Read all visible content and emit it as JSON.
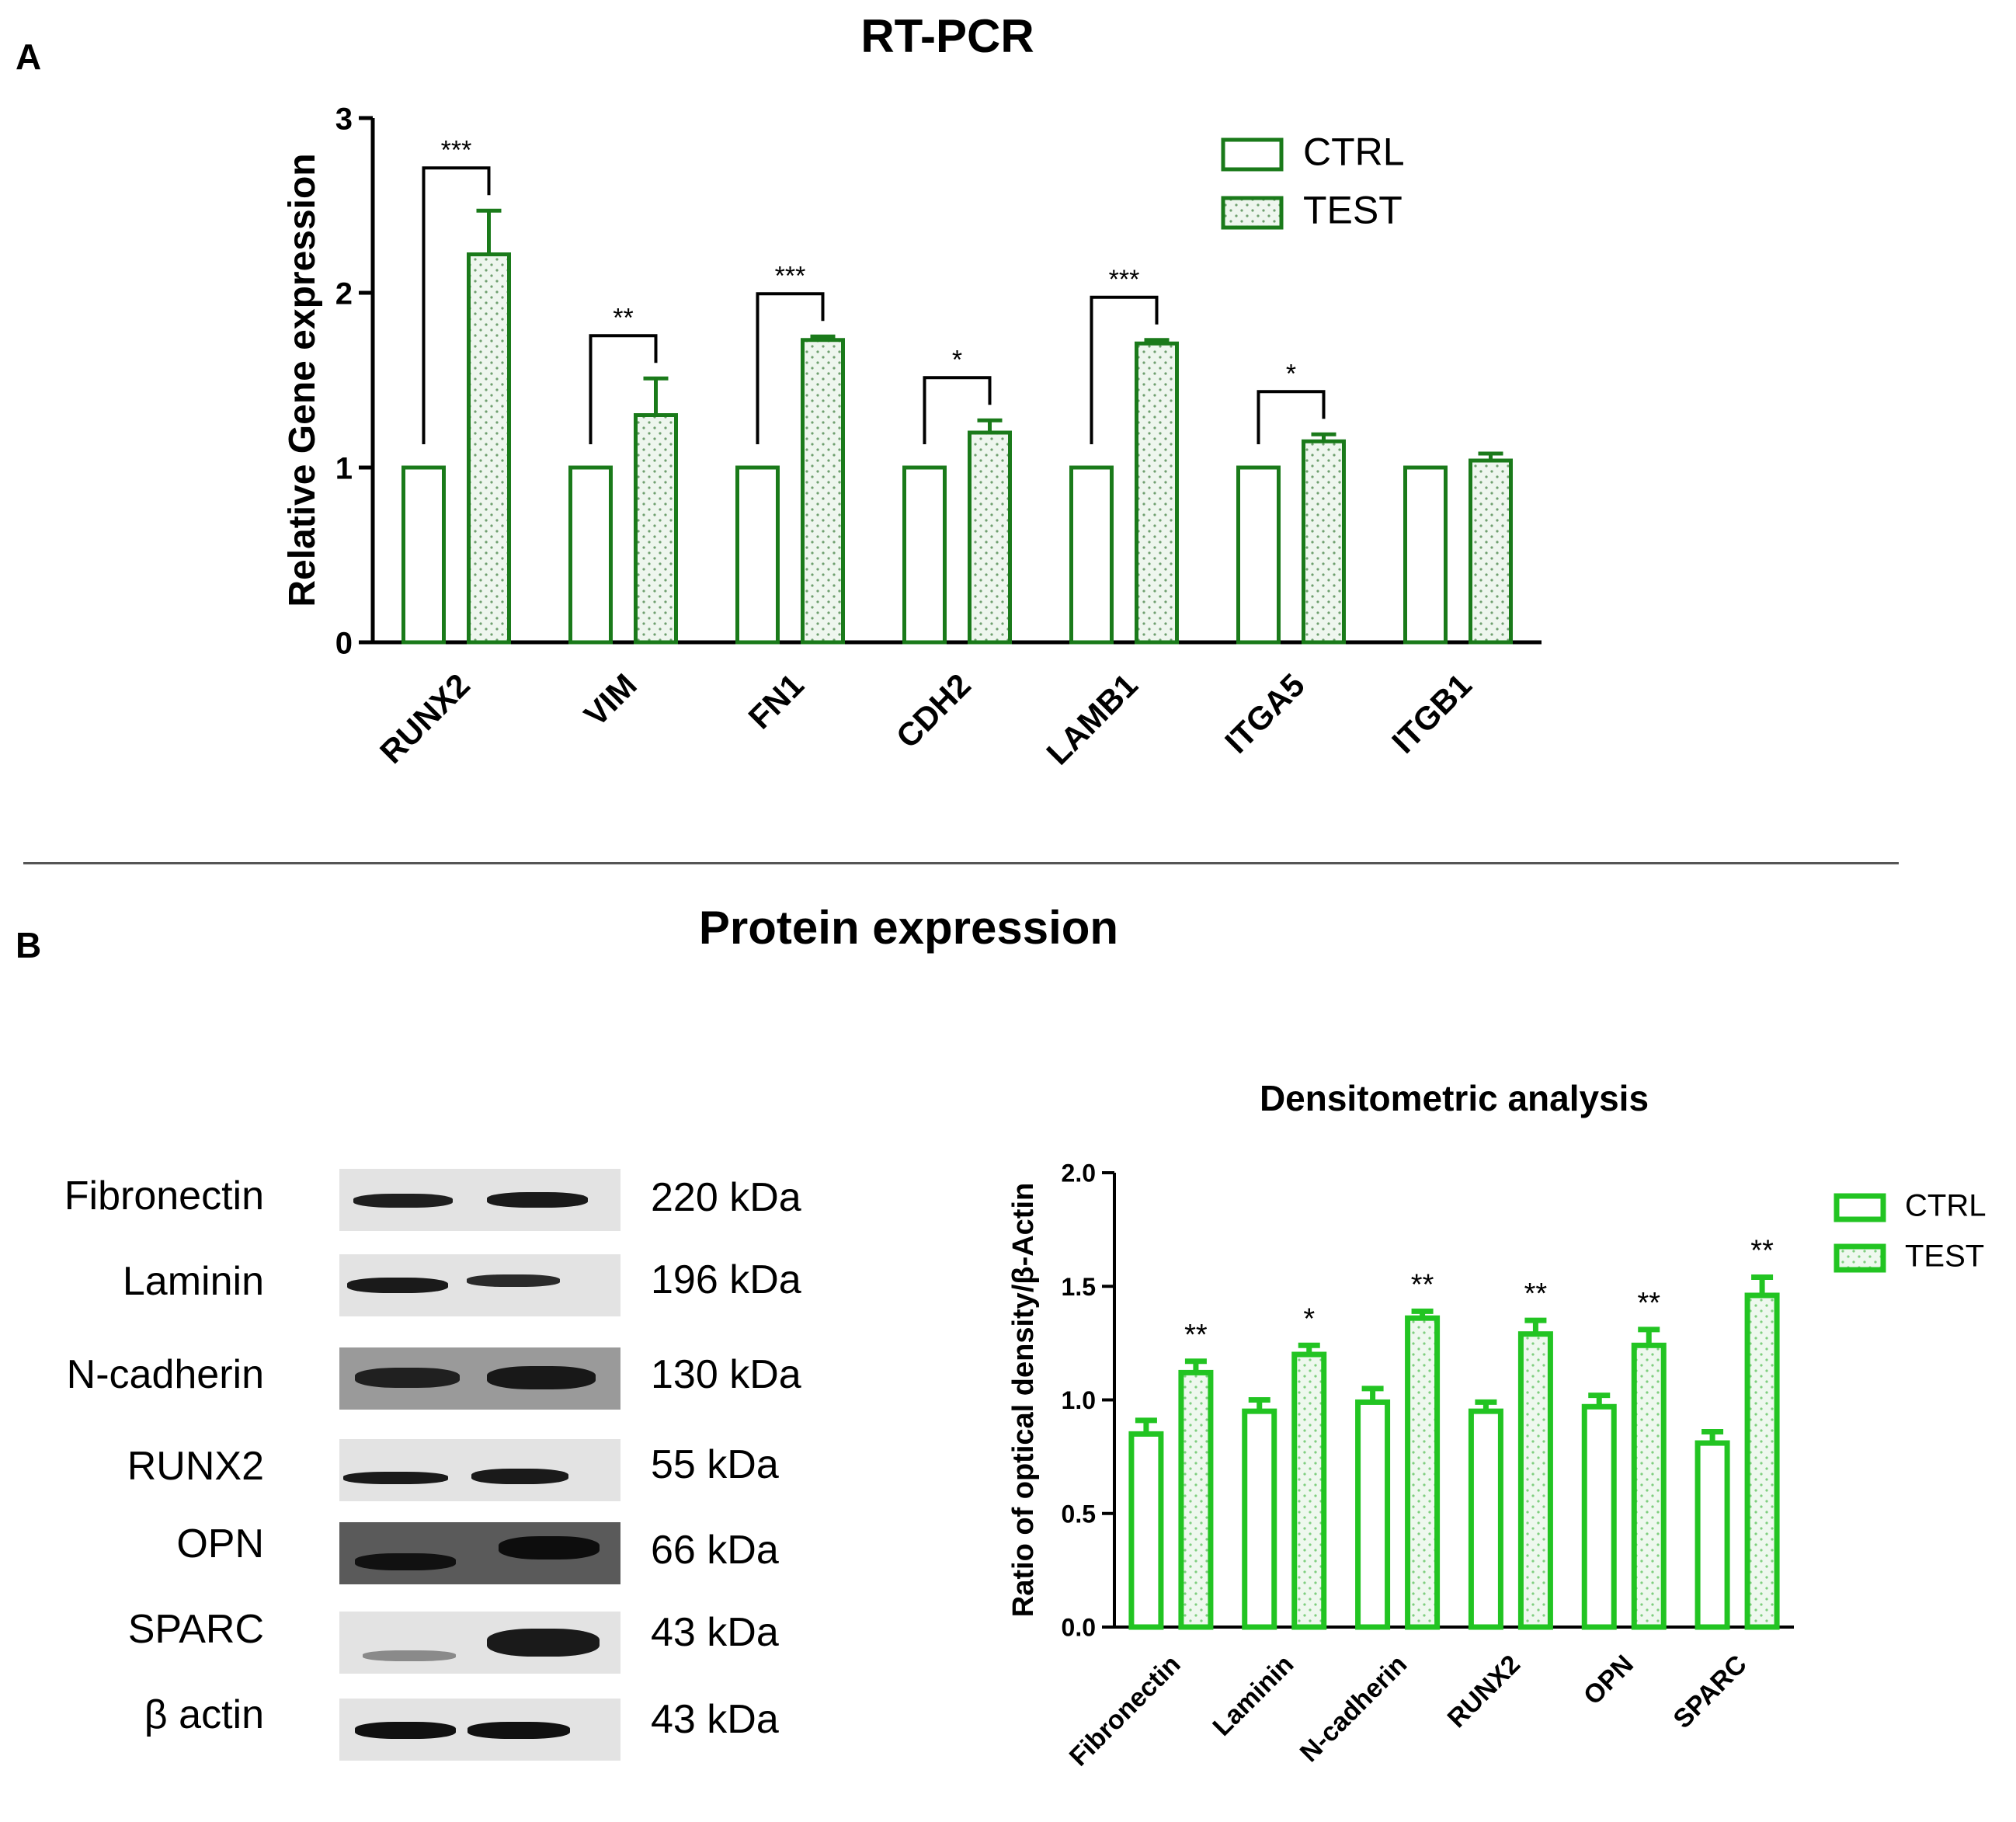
{
  "panel_a": {
    "letter": "A",
    "title": "RT-PCR"
  },
  "panel_b": {
    "letter": "B",
    "title": "Protein expression",
    "western_blot": [
      {
        "protein": "Fibronectin",
        "kda": "220 kDa"
      },
      {
        "protein": "Laminin",
        "kda": "196 kDa"
      },
      {
        "protein": "N-cadherin",
        "kda": "130 kDa"
      },
      {
        "protein": "RUNX2",
        "kda": "55 kDa"
      },
      {
        "protein": "OPN",
        "kda": "66 kDa"
      },
      {
        "protein": "SPARC",
        "kda": "43 kDa"
      },
      {
        "protein": "β actin",
        "kda": "43 kDa"
      }
    ]
  },
  "colors": {
    "green_dark": "#1a7a1a",
    "green_bright": "#22c422",
    "fill_dots_dark": "#6f9f6f",
    "fill_dots_bright": "#7fce7f",
    "fill_bg": "#eef6ee"
  },
  "chart_data": [
    {
      "id": "rtpcr",
      "type": "bar",
      "title": "",
      "ylabel": "Relative Gene expression",
      "xlabel": "",
      "ylim": [
        0,
        3
      ],
      "yticks": [
        "0",
        "1",
        "2",
        "3"
      ],
      "categories": [
        "RUNX2",
        "VIM",
        "FN1",
        "CDH2",
        "LAMB1",
        "ITGA5",
        "ITGB1"
      ],
      "series": [
        {
          "name": "CTRL",
          "values": [
            1,
            1,
            1,
            1,
            1,
            1,
            1
          ],
          "errors": [
            0,
            0,
            0,
            0,
            0,
            0,
            0
          ]
        },
        {
          "name": "TEST",
          "values": [
            2.22,
            1.3,
            1.73,
            1.2,
            1.71,
            1.15,
            1.04
          ],
          "errors": [
            0.25,
            0.21,
            0.02,
            0.07,
            0.02,
            0.04,
            0.04
          ]
        }
      ],
      "significance": [
        "***",
        "**",
        "***",
        "*",
        "***",
        "*",
        ""
      ],
      "legend_position": "top-right"
    },
    {
      "id": "densitometry",
      "type": "bar",
      "title": "Densitometric analysis",
      "ylabel": "Ratio of optical density/β-Actin",
      "xlabel": "",
      "ylim": [
        0,
        2.0
      ],
      "yticks": [
        "0.0",
        "0.5",
        "1.0",
        "1.5",
        "2.0"
      ],
      "categories": [
        "Fibronectin",
        "Laminin",
        "N-cadherin",
        "RUNX2",
        "OPN",
        "SPARC"
      ],
      "series": [
        {
          "name": "CTRL",
          "values": [
            0.85,
            0.95,
            0.99,
            0.95,
            0.97,
            0.81
          ],
          "errors": [
            0.06,
            0.05,
            0.06,
            0.04,
            0.05,
            0.05
          ]
        },
        {
          "name": "TEST",
          "values": [
            1.12,
            1.2,
            1.36,
            1.29,
            1.24,
            1.46
          ],
          "errors": [
            0.05,
            0.04,
            0.03,
            0.06,
            0.07,
            0.08
          ]
        }
      ],
      "significance": [
        "**",
        "*",
        "**",
        "**",
        "**",
        "**"
      ],
      "legend_position": "top-right"
    }
  ]
}
